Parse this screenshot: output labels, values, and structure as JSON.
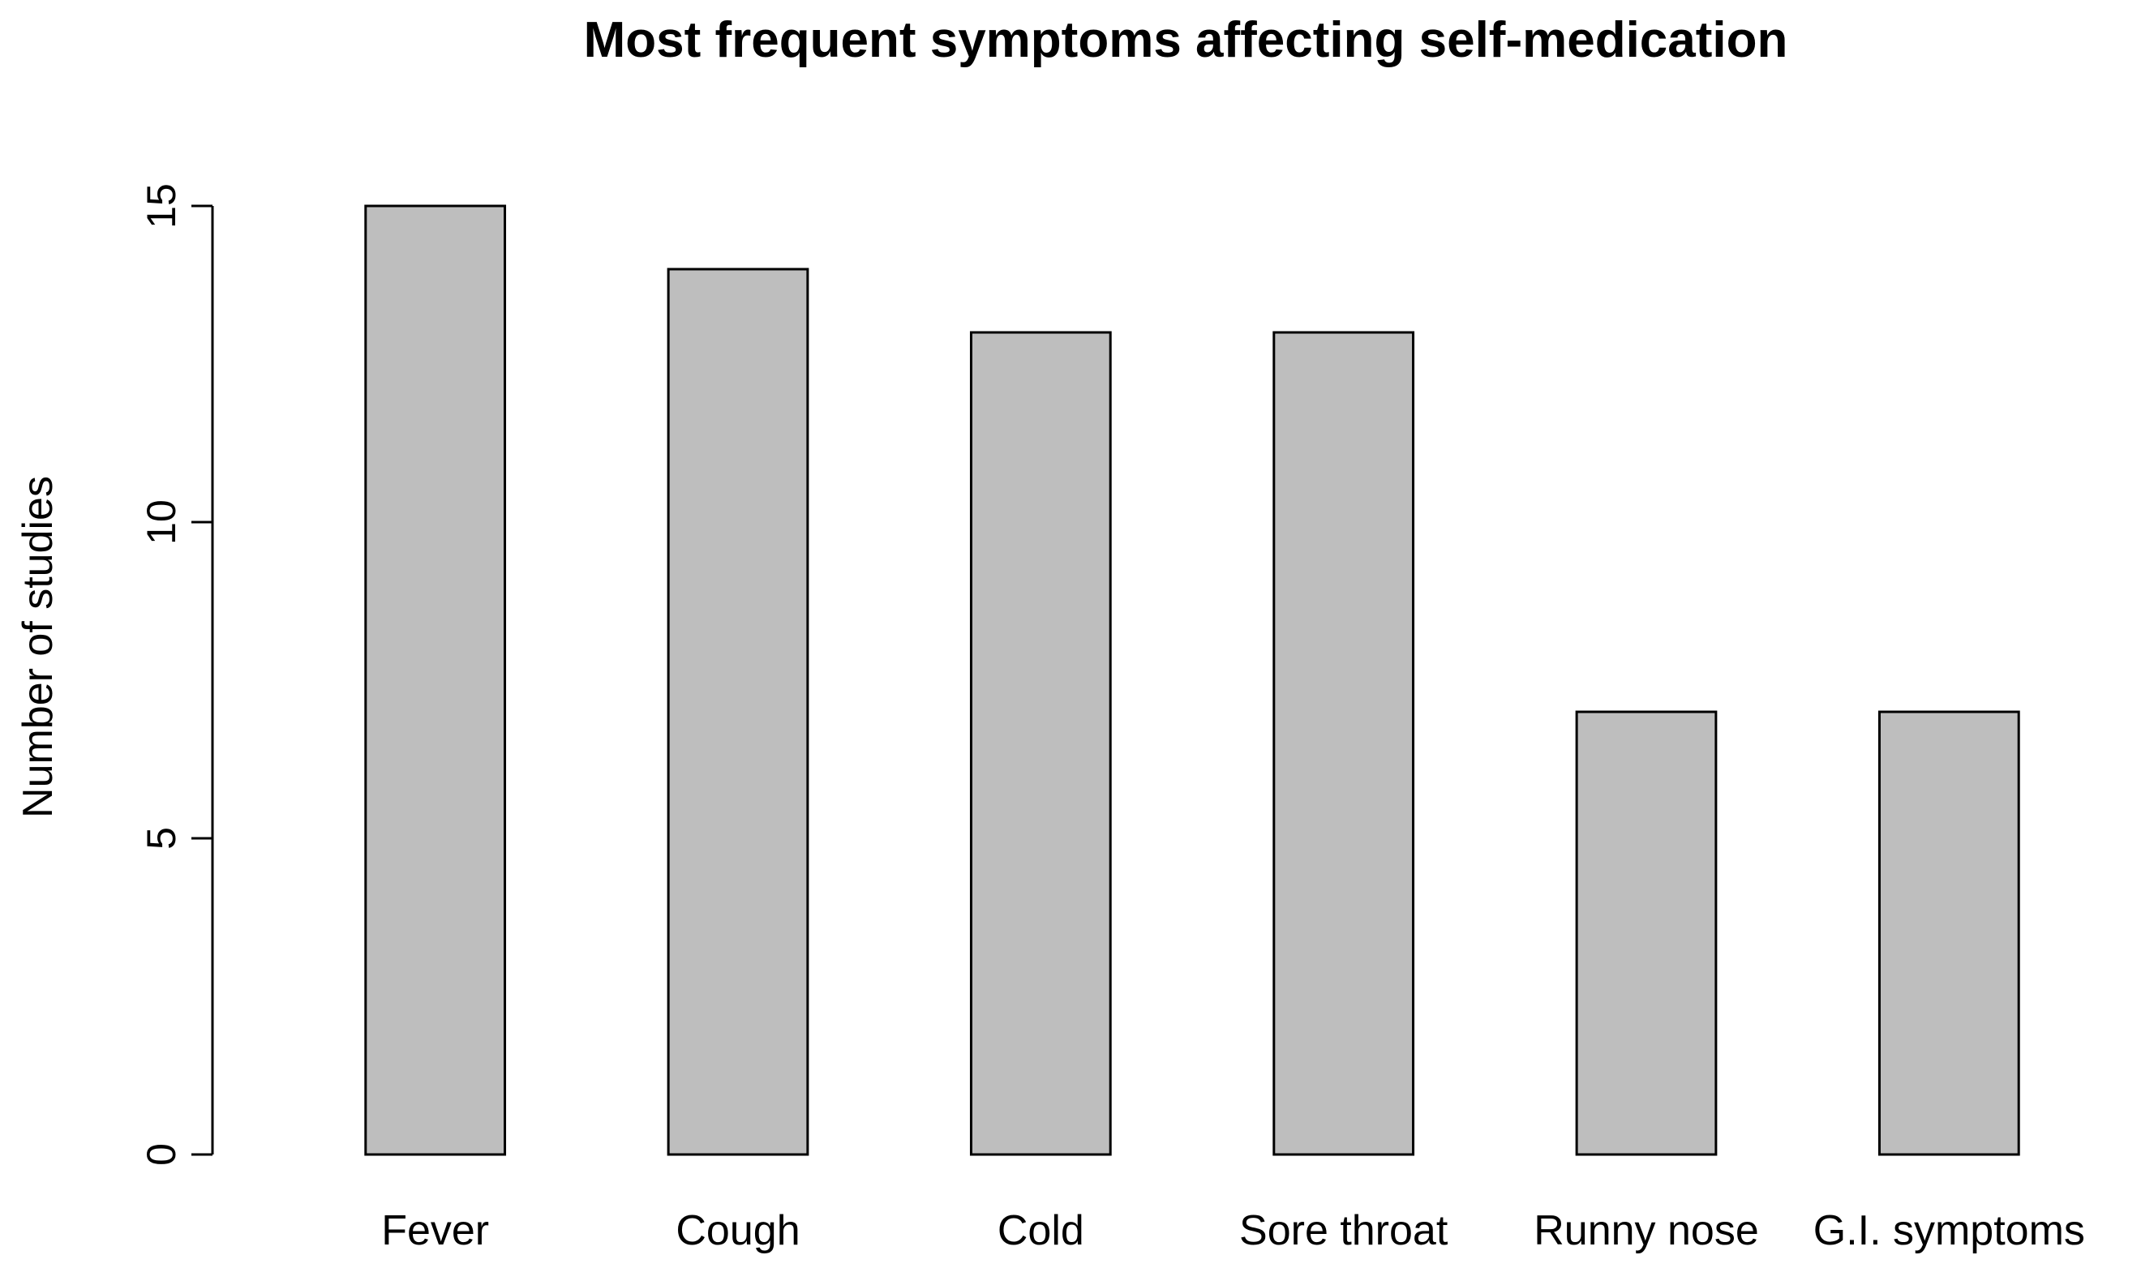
{
  "chart_data": {
    "type": "bar",
    "title": "Most frequent symptoms affecting self-medication",
    "xlabel": "",
    "ylabel": "Number of studies",
    "categories": [
      "Fever",
      "Cough",
      "Cold",
      "Sore throat",
      "Runny nose",
      "G.I. symptoms"
    ],
    "values": [
      15,
      14,
      13,
      13,
      7,
      7
    ],
    "ylim": [
      0,
      15
    ],
    "yticks": [
      0,
      5,
      10,
      15
    ],
    "grid": false,
    "bar_color": "#bebebe",
    "edge_color": "#000000"
  }
}
